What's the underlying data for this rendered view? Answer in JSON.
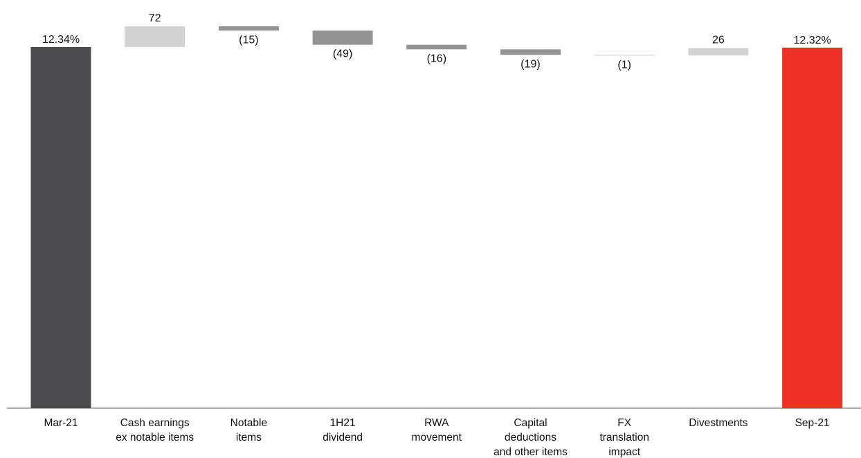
{
  "chart_data": {
    "type": "bar",
    "subtype": "waterfall",
    "title": "",
    "xlabel": "",
    "ylabel": "",
    "unit_note": "",
    "categories": [
      [
        "Mar-21"
      ],
      [
        "Cash earnings",
        "ex notable items"
      ],
      [
        "Notable",
        "items"
      ],
      [
        "1H21",
        "dividend"
      ],
      [
        "RWA",
        "movement"
      ],
      [
        "Capital",
        "deductions",
        "and other items"
      ],
      [
        "FX",
        "translation",
        "impact"
      ],
      [
        "Divestments"
      ],
      [
        "Sep-21"
      ]
    ],
    "bars": [
      {
        "kind": "total",
        "level_pct": 12.34,
        "label": "12.34%",
        "color": "#4b4b4d"
      },
      {
        "kind": "delta",
        "value_bps": 72,
        "label": "72",
        "color": "#d3d3d4"
      },
      {
        "kind": "delta",
        "value_bps": -15,
        "label": "(15)",
        "color": "#949494"
      },
      {
        "kind": "delta",
        "value_bps": -49,
        "label": "(49)",
        "color": "#949494"
      },
      {
        "kind": "delta",
        "value_bps": -16,
        "label": "(16)",
        "color": "#949494"
      },
      {
        "kind": "delta",
        "value_bps": -19,
        "label": "(19)",
        "color": "#949494"
      },
      {
        "kind": "delta",
        "value_bps": -1,
        "label": "(1)",
        "color": "#c8c8c8"
      },
      {
        "kind": "delta",
        "value_bps": 26,
        "label": "26",
        "color": "#d3d3d4"
      },
      {
        "kind": "total",
        "level_pct": 12.32,
        "label": "12.32%",
        "color": "#ee3124"
      }
    ],
    "grid": false,
    "legend": "none"
  }
}
